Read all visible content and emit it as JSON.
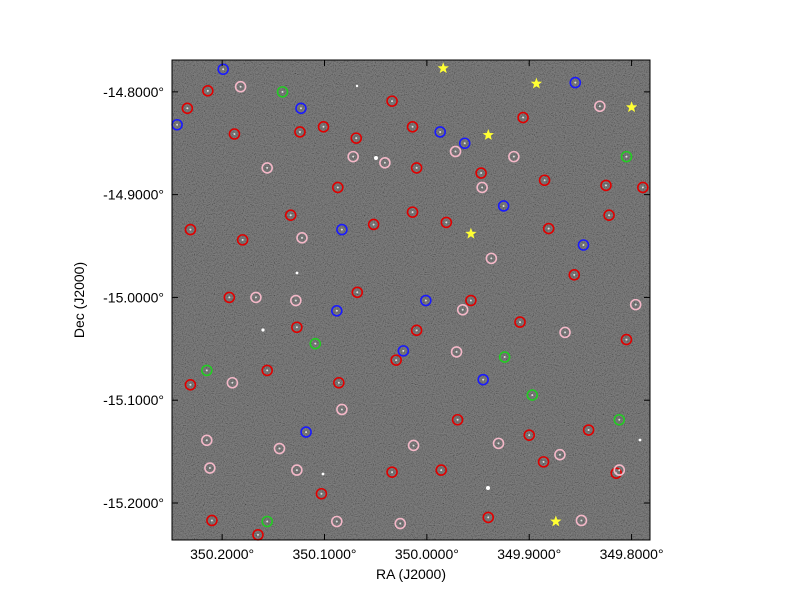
{
  "chart_data": {
    "type": "scatter",
    "x_label": "RA (J2000)",
    "y_label": "Dec (J2000)",
    "xlim": [
      350.249,
      349.782
    ],
    "ylim": [
      -15.236,
      -14.769
    ],
    "xticks": [
      {
        "value": 350.2,
        "label": "350.2000°"
      },
      {
        "value": 350.1,
        "label": "350.1000°"
      },
      {
        "value": 350.0,
        "label": "350.0000°"
      },
      {
        "value": 349.9,
        "label": "349.9000°"
      },
      {
        "value": 349.8,
        "label": "349.8000°"
      }
    ],
    "yticks": [
      {
        "value": -14.8,
        "label": "-14.8000°"
      },
      {
        "value": -14.9,
        "label": "-14.9000°"
      },
      {
        "value": -15.0,
        "label": "-15.0000°"
      },
      {
        "value": -15.1,
        "label": "-15.1000°"
      },
      {
        "value": -15.2,
        "label": "-15.2000°"
      }
    ],
    "series": [
      {
        "color": "#e00000",
        "marker": "circle",
        "x": [
          350.214,
          350.234,
          350.188,
          350.124,
          350.101,
          350.069,
          350.034,
          350.014,
          350.01,
          349.947,
          349.906,
          349.885,
          349.825,
          349.789,
          350.231,
          350.18,
          350.133,
          350.087,
          350.052,
          350.014,
          349.981,
          349.881,
          349.822,
          350.193,
          350.127,
          350.068,
          350.01,
          349.957,
          349.909,
          349.856,
          349.805,
          350.231,
          350.156,
          350.086,
          350.03,
          349.97,
          349.9,
          349.842,
          350.21,
          350.165,
          350.103,
          350.034,
          349.986,
          349.94,
          349.886,
          349.815
        ],
        "values": [
          -14.799,
          -14.816,
          -14.841,
          -14.839,
          -14.834,
          -14.845,
          -14.809,
          -14.834,
          -14.874,
          -14.879,
          -14.825,
          -14.886,
          -14.891,
          -14.893,
          -14.934,
          -14.944,
          -14.92,
          -14.893,
          -14.929,
          -14.917,
          -14.927,
          -14.933,
          -14.92,
          -15.0,
          -15.029,
          -14.995,
          -15.032,
          -15.003,
          -15.024,
          -14.978,
          -15.041,
          -15.085,
          -15.071,
          -15.083,
          -15.061,
          -15.119,
          -15.134,
          -15.129,
          -15.217,
          -15.231,
          -15.191,
          -15.17,
          -15.168,
          -15.214,
          -15.16,
          -15.171
        ]
      },
      {
        "color": "#f4b8c8",
        "marker": "circle",
        "x": [
          350.182,
          350.072,
          350.041,
          349.972,
          349.915,
          349.831,
          350.156,
          349.946,
          350.122,
          349.937,
          350.167,
          350.128,
          349.965,
          349.865,
          349.796,
          350.19,
          350.083,
          349.971,
          350.215,
          350.144,
          350.013,
          349.93,
          349.87,
          349.812,
          350.212,
          350.127,
          350.088,
          349.849,
          350.026
        ],
        "values": [
          -14.795,
          -14.863,
          -14.869,
          -14.858,
          -14.863,
          -14.814,
          -14.874,
          -14.893,
          -14.942,
          -14.962,
          -15.0,
          -15.003,
          -15.012,
          -15.034,
          -15.007,
          -15.083,
          -15.109,
          -15.053,
          -15.139,
          -15.147,
          -15.144,
          -15.142,
          -15.153,
          -15.168,
          -15.166,
          -15.168,
          -15.218,
          -15.217,
          -15.22
        ]
      },
      {
        "color": "#1a1aff",
        "marker": "circle",
        "x": [
          350.199,
          350.244,
          350.123,
          349.963,
          350.083,
          349.847,
          350.001,
          350.088,
          350.023,
          349.945,
          350.118,
          349.855,
          349.987,
          349.925
        ],
        "values": [
          -14.778,
          -14.832,
          -14.816,
          -14.85,
          -14.934,
          -14.949,
          -15.003,
          -15.013,
          -15.052,
          -15.08,
          -15.131,
          -14.791,
          -14.839,
          -14.911
        ]
      },
      {
        "color": "#22cc22",
        "marker": "circle",
        "x": [
          350.141,
          350.215,
          350.109,
          349.924,
          349.897,
          350.156,
          349.805,
          349.812
        ],
        "values": [
          -14.8,
          -15.071,
          -15.045,
          -15.058,
          -15.095,
          -15.218,
          -14.863,
          -15.119
        ]
      },
      {
        "color": "#ffff33",
        "marker": "star",
        "x": [
          349.984,
          349.893,
          349.8,
          349.94,
          349.957,
          349.874
        ],
        "values": [
          -14.777,
          -14.792,
          -14.815,
          -14.842,
          -14.938,
          -15.218
        ]
      }
    ]
  }
}
